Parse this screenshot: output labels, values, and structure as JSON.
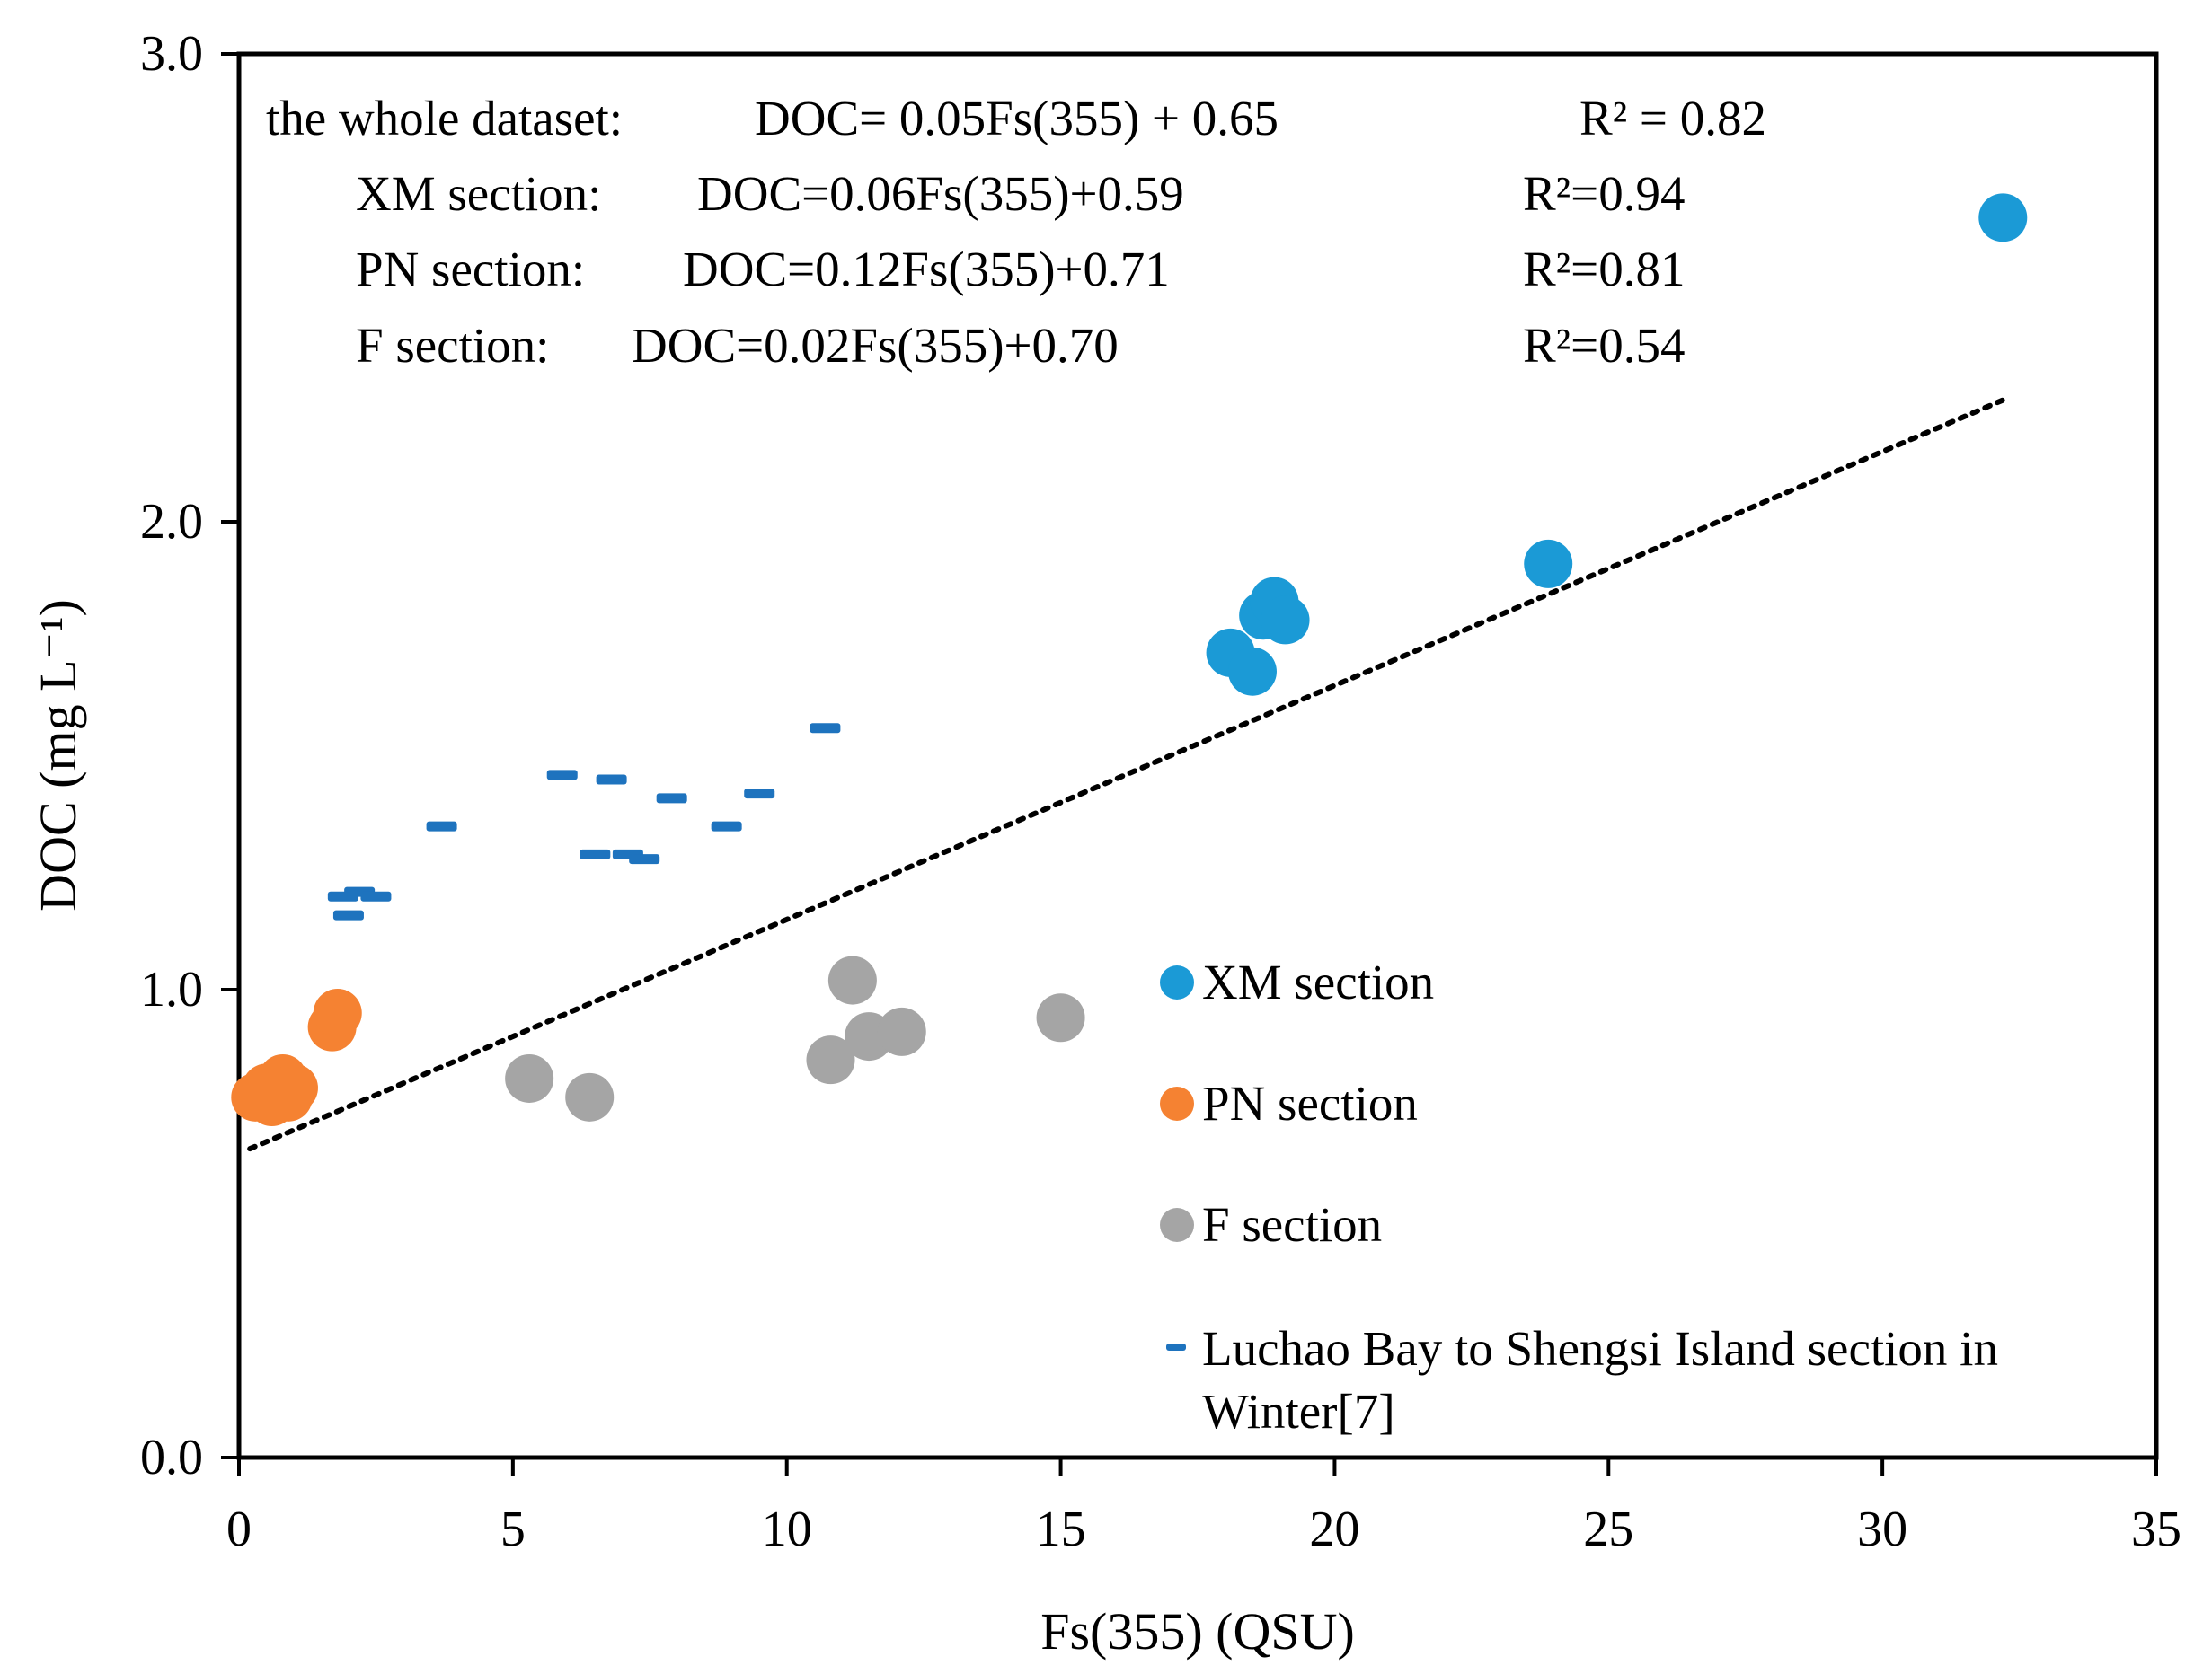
{
  "chart_data": {
    "type": "scatter",
    "xlabel": "Fs(355) (QSU)",
    "ylabel": "DOC (mg L⁻¹)",
    "xlim": [
      0,
      35
    ],
    "ylim": [
      0,
      3
    ],
    "x_ticks": [
      "0",
      "5",
      "10",
      "15",
      "20",
      "25",
      "30",
      "35"
    ],
    "y_ticks": [
      "0.0",
      "1.0",
      "2.0",
      "3.0"
    ],
    "grid": false,
    "legend_position": "lower-right",
    "series": [
      {
        "name": "XM section",
        "marker": "circle",
        "color": "#1b9ad6",
        "points": [
          [
            18.1,
            1.72
          ],
          [
            18.5,
            1.68
          ],
          [
            18.7,
            1.8
          ],
          [
            18.9,
            1.83
          ],
          [
            19.1,
            1.79
          ],
          [
            23.9,
            1.91
          ],
          [
            32.2,
            2.65
          ]
        ]
      },
      {
        "name": "PN section",
        "marker": "circle",
        "color": "#f58232",
        "points": [
          [
            0.3,
            0.77
          ],
          [
            0.5,
            0.79
          ],
          [
            0.6,
            0.76
          ],
          [
            0.8,
            0.81
          ],
          [
            0.9,
            0.77
          ],
          [
            1.0,
            0.79
          ],
          [
            1.7,
            0.92
          ],
          [
            1.8,
            0.95
          ]
        ]
      },
      {
        "name": "F section",
        "marker": "circle",
        "color": "#a5a5a5",
        "points": [
          [
            5.3,
            0.81
          ],
          [
            6.4,
            0.77
          ],
          [
            10.8,
            0.85
          ],
          [
            11.2,
            1.02
          ],
          [
            11.5,
            0.9
          ],
          [
            12.1,
            0.91
          ],
          [
            15.0,
            0.94
          ]
        ]
      },
      {
        "name": "Luchao Bay to Shengsi Island section in Winter[7]",
        "marker": "dash",
        "color": "#1e73be",
        "points": [
          [
            1.9,
            1.2
          ],
          [
            2.0,
            1.16
          ],
          [
            2.2,
            1.21
          ],
          [
            2.5,
            1.2
          ],
          [
            3.7,
            1.35
          ],
          [
            5.9,
            1.46
          ],
          [
            6.5,
            1.29
          ],
          [
            6.8,
            1.45
          ],
          [
            7.1,
            1.29
          ],
          [
            7.4,
            1.28
          ],
          [
            7.9,
            1.41
          ],
          [
            8.9,
            1.35
          ],
          [
            9.5,
            1.42
          ],
          [
            10.7,
            1.56
          ]
        ]
      }
    ],
    "trendline": {
      "style": "dotted",
      "color": "#000000",
      "slope": 0.05,
      "intercept": 0.65,
      "x_range": [
        0.2,
        32.2
      ]
    },
    "annotations": [
      {
        "label": "the whole dataset:",
        "equation": "DOC= 0.05Fs(355)  + 0.65",
        "r2": "R² = 0.82"
      },
      {
        "label": "XM section:",
        "equation": "DOC=0.06Fs(355)+0.59",
        "r2": "R²=0.94"
      },
      {
        "label": "PN section:",
        "equation": "DOC=0.12Fs(355)+0.71",
        "r2": "R²=0.81"
      },
      {
        "label": "F section:",
        "equation": "DOC=0.02Fs(355)+0.70",
        "r2": "R²=0.54"
      }
    ],
    "legend": [
      {
        "name": "XM section",
        "marker": "circle",
        "color": "#1b9ad6"
      },
      {
        "name": "PN section",
        "marker": "circle",
        "color": "#f58232"
      },
      {
        "name": "F section",
        "marker": "circle",
        "color": "#a5a5a5"
      },
      {
        "name_lines": [
          "Luchao Bay to Shengsi Island section in",
          "Winter[7]"
        ],
        "marker": "dash",
        "color": "#1e73be"
      }
    ]
  }
}
